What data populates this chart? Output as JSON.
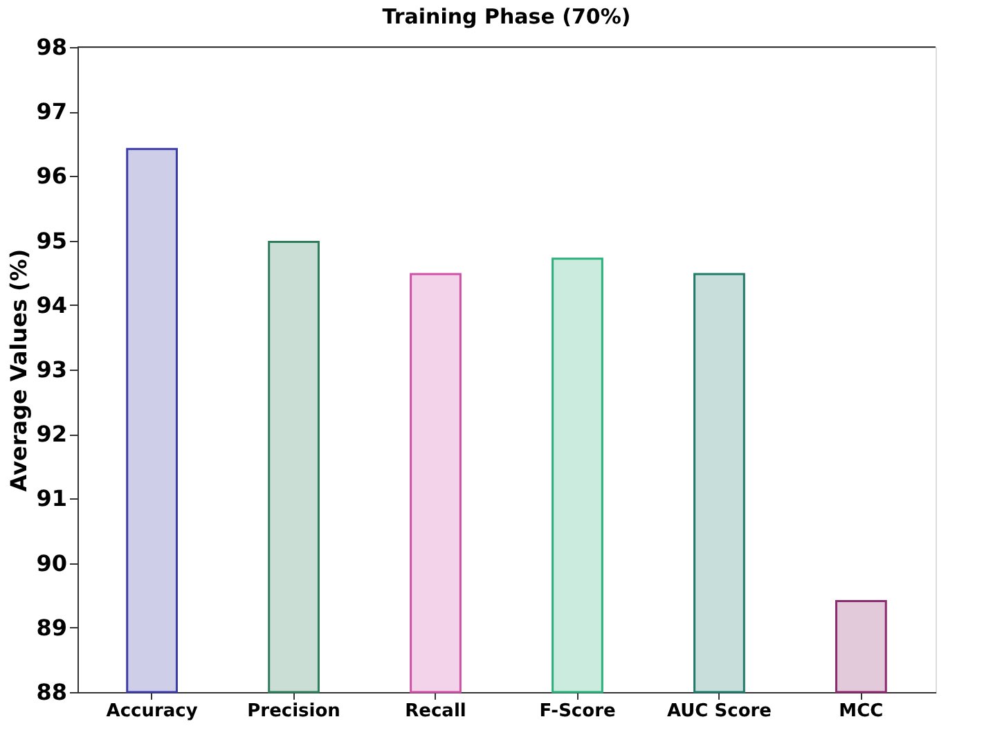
{
  "chart_data": {
    "type": "bar",
    "title": "Training Phase (70%)",
    "ylabel": "Average Values (%)",
    "categories": [
      "Accuracy",
      "Precision",
      "Recall",
      "F-Score",
      "AUC Score",
      "MCC"
    ],
    "values": [
      96.42,
      94.98,
      94.48,
      94.72,
      94.48,
      89.41
    ],
    "colors": [
      "#3c3ca8",
      "#2e7d5b",
      "#d050a8",
      "#2ab07a",
      "#1f7a6a",
      "#8b2a6e"
    ],
    "ylim": [
      88,
      98
    ],
    "yticks": [
      88,
      89,
      90,
      91,
      92,
      93,
      94,
      95,
      96,
      97,
      98
    ],
    "grid": false
  }
}
